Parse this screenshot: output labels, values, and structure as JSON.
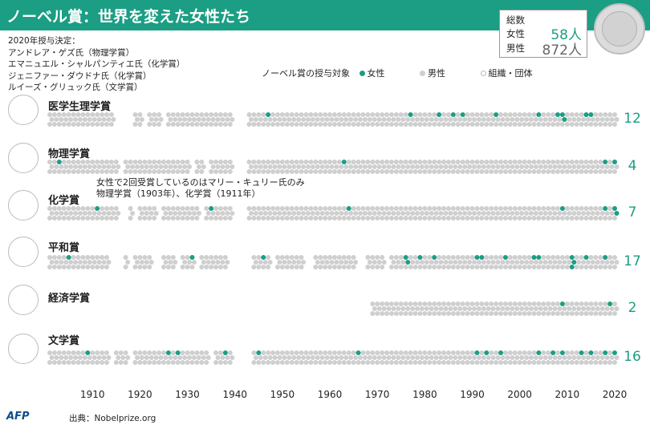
{
  "title": "ノーベル賞：世界を変えた女性たち",
  "totals": {
    "label": "総数",
    "female_label": "女性",
    "female_value": "58人",
    "male_label": "男性",
    "male_value": "872人"
  },
  "laureates_2020": [
    "2020年授与決定：",
    "アンドレア・ゲズ氏（物理学賞）",
    "エマニュエル・シャルパンティエ氏（化学賞）",
    "ジェニファー・ダウドナ氏（化学賞）",
    "ルイーズ・グリュック氏（文学賞）"
  ],
  "legend": {
    "title": "ノーベル賞の授与対象",
    "female": "女性",
    "male": "男性",
    "org": "組織・団体"
  },
  "annotation": [
    "女性で2回受賞しているのはマリー・キュリー氏のみ",
    "物理学賞（1903年）、化学賞（1911年）"
  ],
  "footer": {
    "logo": "AFP",
    "source": "出典：Nobelprize.org"
  },
  "colors": {
    "female": "#1b9e83",
    "male": "#cfcfcf",
    "org": "#ffffff",
    "header": "#1b9e83"
  },
  "icons": [
    "heart-ecg-icon",
    "atom-icon",
    "flask-icon",
    "dove-icon",
    "trend-chart-icon",
    "book-icon"
  ],
  "chart_data": {
    "type": "scatter",
    "x_ticks": [
      1910,
      1920,
      1930,
      1940,
      1950,
      1960,
      1970,
      1980,
      1990,
      2000,
      2010,
      2020
    ],
    "xlim": [
      1901,
      2020
    ],
    "categories": [
      {
        "name": "医学生理学賞",
        "female_count": "12",
        "female_years": [
          1947,
          1977,
          1983,
          1986,
          1988,
          1995,
          2004,
          2008,
          2009,
          2009,
          2014,
          2015
        ],
        "gap_years": [
          1915,
          1916,
          1917,
          1918,
          1921,
          1925,
          1940,
          1941,
          1942
        ]
      },
      {
        "name": "物理学賞",
        "female_count": "4",
        "female_years": [
          1903,
          1963,
          2018,
          2020
        ],
        "gap_years": [
          1916,
          1931,
          1934,
          1940,
          1941,
          1942
        ]
      },
      {
        "name": "化学賞",
        "female_count": "7",
        "female_years": [
          1911,
          1935,
          1964,
          2009,
          2018,
          2020,
          2020
        ],
        "gap_years": [
          1916,
          1917,
          1919,
          1924,
          1933,
          1940,
          1941,
          1942
        ]
      },
      {
        "name": "平和賞",
        "female_count": "17",
        "female_years": [
          1905,
          1931,
          1946,
          1976,
          1976,
          1979,
          1982,
          1991,
          1992,
          1997,
          2003,
          2004,
          2011,
          2011,
          2011,
          2014,
          2018
        ],
        "gap_years": [
          1914,
          1915,
          1916,
          1918,
          1923,
          1924,
          1928,
          1932,
          1939,
          1940,
          1941,
          1942,
          1943,
          1948,
          1955,
          1956,
          1966,
          1967,
          1972
        ]
      },
      {
        "name": "経済学賞",
        "female_count": "2",
        "female_years": [
          2009,
          2019
        ],
        "start_year": 1969
      },
      {
        "name": "文学賞",
        "female_count": "16",
        "female_years": [
          1909,
          1926,
          1928,
          1938,
          1945,
          1966,
          1991,
          1993,
          1996,
          2004,
          2007,
          2009,
          2013,
          2015,
          2018,
          2020
        ],
        "gap_years": [
          1914,
          1918,
          1935,
          1940,
          1941,
          1942,
          1943
        ]
      }
    ]
  }
}
